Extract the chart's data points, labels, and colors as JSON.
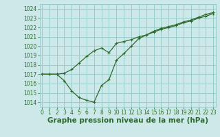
{
  "bg_color": "#cce8e8",
  "grid_color": "#99cccc",
  "line_color": "#2d6a2d",
  "xlabel": "Graphe pression niveau de la mer (hPa)",
  "xlabel_fontsize": 7.5,
  "ylim": [
    1013.5,
    1024.5
  ],
  "xlim": [
    -0.3,
    23.3
  ],
  "yticks": [
    1014,
    1015,
    1016,
    1017,
    1018,
    1019,
    1020,
    1021,
    1022,
    1023,
    1024
  ],
  "xticks": [
    0,
    1,
    2,
    3,
    4,
    5,
    6,
    7,
    8,
    9,
    10,
    11,
    12,
    13,
    14,
    15,
    16,
    17,
    18,
    19,
    20,
    21,
    22,
    23
  ],
  "line1_x": [
    0,
    1,
    2,
    3,
    4,
    5,
    6,
    7,
    8,
    9,
    10,
    11,
    12,
    13,
    14,
    15,
    16,
    17,
    18,
    19,
    20,
    21,
    22,
    23
  ],
  "line1_y": [
    1017.0,
    1017.0,
    1017.0,
    1017.1,
    1017.5,
    1018.2,
    1018.9,
    1019.5,
    1019.8,
    1019.3,
    1020.3,
    1020.5,
    1020.7,
    1021.0,
    1021.2,
    1021.5,
    1021.8,
    1022.0,
    1022.2,
    1022.5,
    1022.7,
    1023.0,
    1023.2,
    1023.5
  ],
  "line2_x": [
    0,
    1,
    2,
    3,
    4,
    5,
    6,
    7,
    8,
    9,
    10,
    11,
    12,
    13,
    14,
    15,
    16,
    17,
    18,
    19,
    20,
    21,
    22,
    23
  ],
  "line2_y": [
    1017.0,
    1017.0,
    1017.0,
    1016.3,
    1015.2,
    1014.5,
    1014.2,
    1014.0,
    1015.8,
    1016.4,
    1018.5,
    1019.2,
    1020.0,
    1020.8,
    1021.2,
    1021.6,
    1021.9,
    1022.1,
    1022.3,
    1022.6,
    1022.8,
    1023.1,
    1023.4,
    1023.6
  ]
}
